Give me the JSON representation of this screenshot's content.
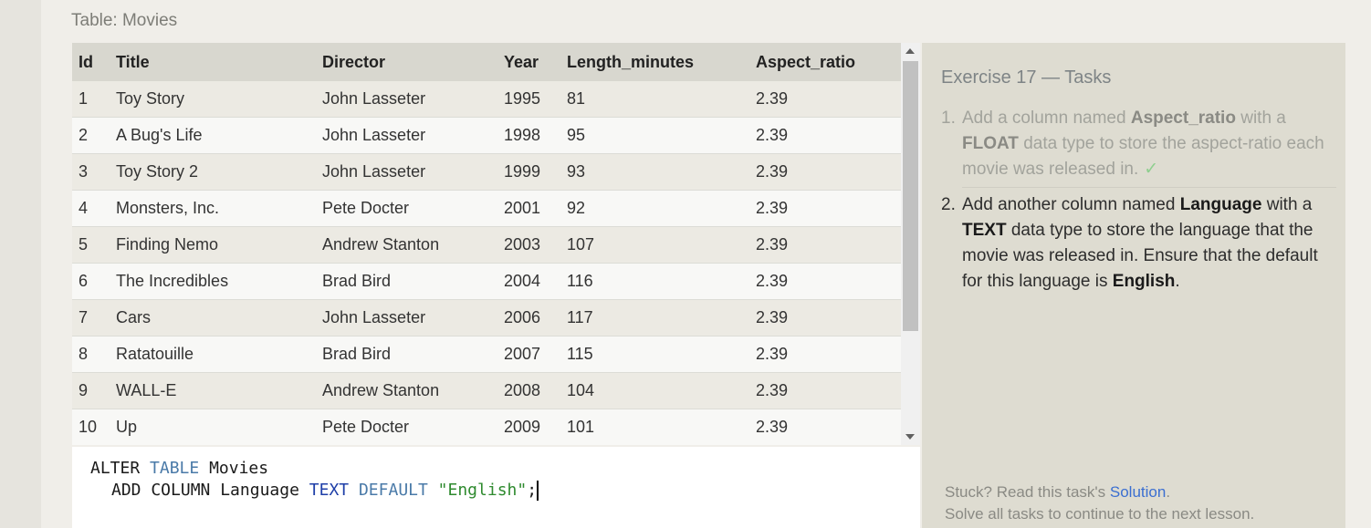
{
  "table_title": "Table: Movies",
  "columns": [
    "Id",
    "Title",
    "Director",
    "Year",
    "Length_minutes",
    "Aspect_ratio"
  ],
  "rows": [
    [
      "1",
      "Toy Story",
      "John Lasseter",
      "1995",
      "81",
      "2.39"
    ],
    [
      "2",
      "A Bug's Life",
      "John Lasseter",
      "1998",
      "95",
      "2.39"
    ],
    [
      "3",
      "Toy Story 2",
      "John Lasseter",
      "1999",
      "93",
      "2.39"
    ],
    [
      "4",
      "Monsters, Inc.",
      "Pete Docter",
      "2001",
      "92",
      "2.39"
    ],
    [
      "5",
      "Finding Nemo",
      "Andrew Stanton",
      "2003",
      "107",
      "2.39"
    ],
    [
      "6",
      "The Incredibles",
      "Brad Bird",
      "2004",
      "116",
      "2.39"
    ],
    [
      "7",
      "Cars",
      "John Lasseter",
      "2006",
      "117",
      "2.39"
    ],
    [
      "8",
      "Ratatouille",
      "Brad Bird",
      "2007",
      "115",
      "2.39"
    ],
    [
      "9",
      "WALL-E",
      "Andrew Stanton",
      "2008",
      "104",
      "2.39"
    ],
    [
      "10",
      "Up",
      "Pete Docter",
      "2009",
      "101",
      "2.39"
    ]
  ],
  "editor": {
    "line1": {
      "kw1": "ALTER",
      "kw2": "TABLE",
      "name": "Movies"
    },
    "line2": {
      "kw1": "ADD COLUMN",
      "name": "Language",
      "type": "TEXT",
      "kw2": "DEFAULT",
      "value": "\"English\"",
      "end": ";"
    }
  },
  "exercise": {
    "title": "Exercise 17 — Tasks",
    "task1": {
      "num": "1.",
      "t1": "Add a column named ",
      "b1": "Aspect_ratio",
      "t2": " with a ",
      "b2": "FLOAT",
      "t3": " data type to store the aspect-ratio each movie was released in.",
      "check": "✓"
    },
    "task2": {
      "num": "2.",
      "t1": "Add another column named ",
      "b1": "Language",
      "t2": " with a ",
      "b2": "TEXT",
      "t3": " data type to store the language that the movie was released in. Ensure that the default for this language is ",
      "b3": "English",
      "t4": "."
    }
  },
  "footer": {
    "stuck_text": "Stuck? Read this task's ",
    "solution_link": "Solution",
    "stuck_end": ".",
    "continue_text": "Solve all tasks to continue to the next lesson."
  },
  "colors": {
    "keyword_blue": "#4a7aa8",
    "keyword_navy": "#1f3fa8",
    "string_green": "#2e8a2e",
    "link_blue": "#3b6fd1",
    "check_green": "#8fcf8f"
  }
}
